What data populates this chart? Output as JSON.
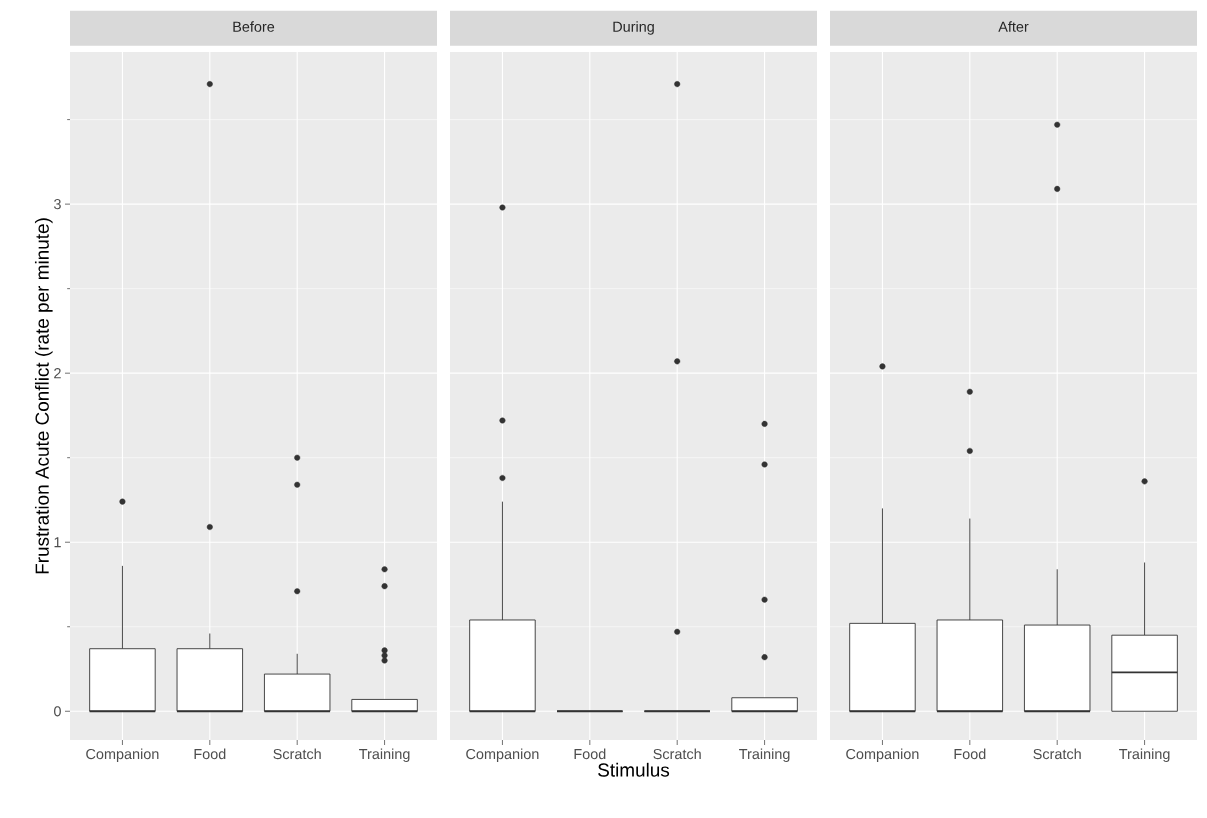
{
  "chart_data": [
    {
      "type": "box",
      "title": "Before",
      "ylabel": "Frustration Acute Conflict (rate per minute)",
      "categories": [
        "Companion",
        "Food",
        "Scratch",
        "Training"
      ],
      "ylim": [
        -0.17,
        3.9
      ],
      "yticks": [
        0,
        1,
        2,
        3
      ],
      "grid": true,
      "marker": "circle",
      "boxes": [
        {
          "low": 0,
          "q1": 0,
          "median": 0,
          "q3": 0.37,
          "high": 0.86,
          "outliers": [
            1.24
          ]
        },
        {
          "low": 0,
          "q1": 0,
          "median": 0,
          "q3": 0.37,
          "high": 0.46,
          "outliers": [
            1.09,
            3.71
          ]
        },
        {
          "low": 0,
          "q1": 0,
          "median": 0,
          "q3": 0.22,
          "high": 0.34,
          "outliers": [
            0.71,
            1.34,
            1.5
          ]
        },
        {
          "low": 0,
          "q1": 0,
          "median": 0,
          "q3": 0.07,
          "high": 0.07,
          "outliers": [
            0.3,
            0.33,
            0.36,
            0.74,
            0.84
          ]
        }
      ]
    },
    {
      "type": "box",
      "title": "During",
      "xlabel": "Stimulus",
      "categories": [
        "Companion",
        "Food",
        "Scratch",
        "Training"
      ],
      "ylim": [
        -0.17,
        3.9
      ],
      "yticks": [
        0,
        1,
        2,
        3
      ],
      "tick_labels": "x",
      "grid": true,
      "marker": "circle",
      "boxes": [
        {
          "low": 0,
          "q1": 0,
          "median": 0,
          "q3": 0.54,
          "high": 1.24,
          "outliers": [
            1.38,
            1.72,
            2.98
          ]
        },
        {
          "low": 0,
          "q1": 0,
          "median": 0,
          "q3": 0,
          "high": 0
        },
        {
          "low": 0,
          "q1": 0,
          "median": 0,
          "q3": 0,
          "high": 0,
          "outliers": [
            0.47,
            2.07,
            3.71
          ]
        },
        {
          "low": 0,
          "q1": 0,
          "median": 0,
          "q3": 0.08,
          "high": 0.08,
          "outliers": [
            0.32,
            0.66,
            1.46,
            1.7
          ]
        }
      ]
    },
    {
      "type": "box",
      "title": "After",
      "categories": [
        "Companion",
        "Food",
        "Scratch",
        "Training"
      ],
      "ylim": [
        -0.17,
        3.9
      ],
      "yticks": [
        0,
        1,
        2,
        3
      ],
      "tick_labels": "x",
      "grid": true,
      "marker": "circle",
      "boxes": [
        {
          "low": 0,
          "q1": 0,
          "median": 0,
          "q3": 0.52,
          "high": 1.2,
          "outliers": [
            2.04
          ]
        },
        {
          "low": 0,
          "q1": 0,
          "median": 0,
          "q3": 0.54,
          "high": 1.14,
          "outliers": [
            1.54,
            1.89
          ]
        },
        {
          "low": 0,
          "q1": 0,
          "median": 0,
          "q3": 0.51,
          "high": 0.84,
          "outliers": [
            3.09,
            3.47
          ]
        },
        {
          "low": 0,
          "q1": 0,
          "median": 0.23,
          "q3": 0.45,
          "high": 0.88,
          "outliers": [
            1.36
          ]
        }
      ]
    }
  ]
}
